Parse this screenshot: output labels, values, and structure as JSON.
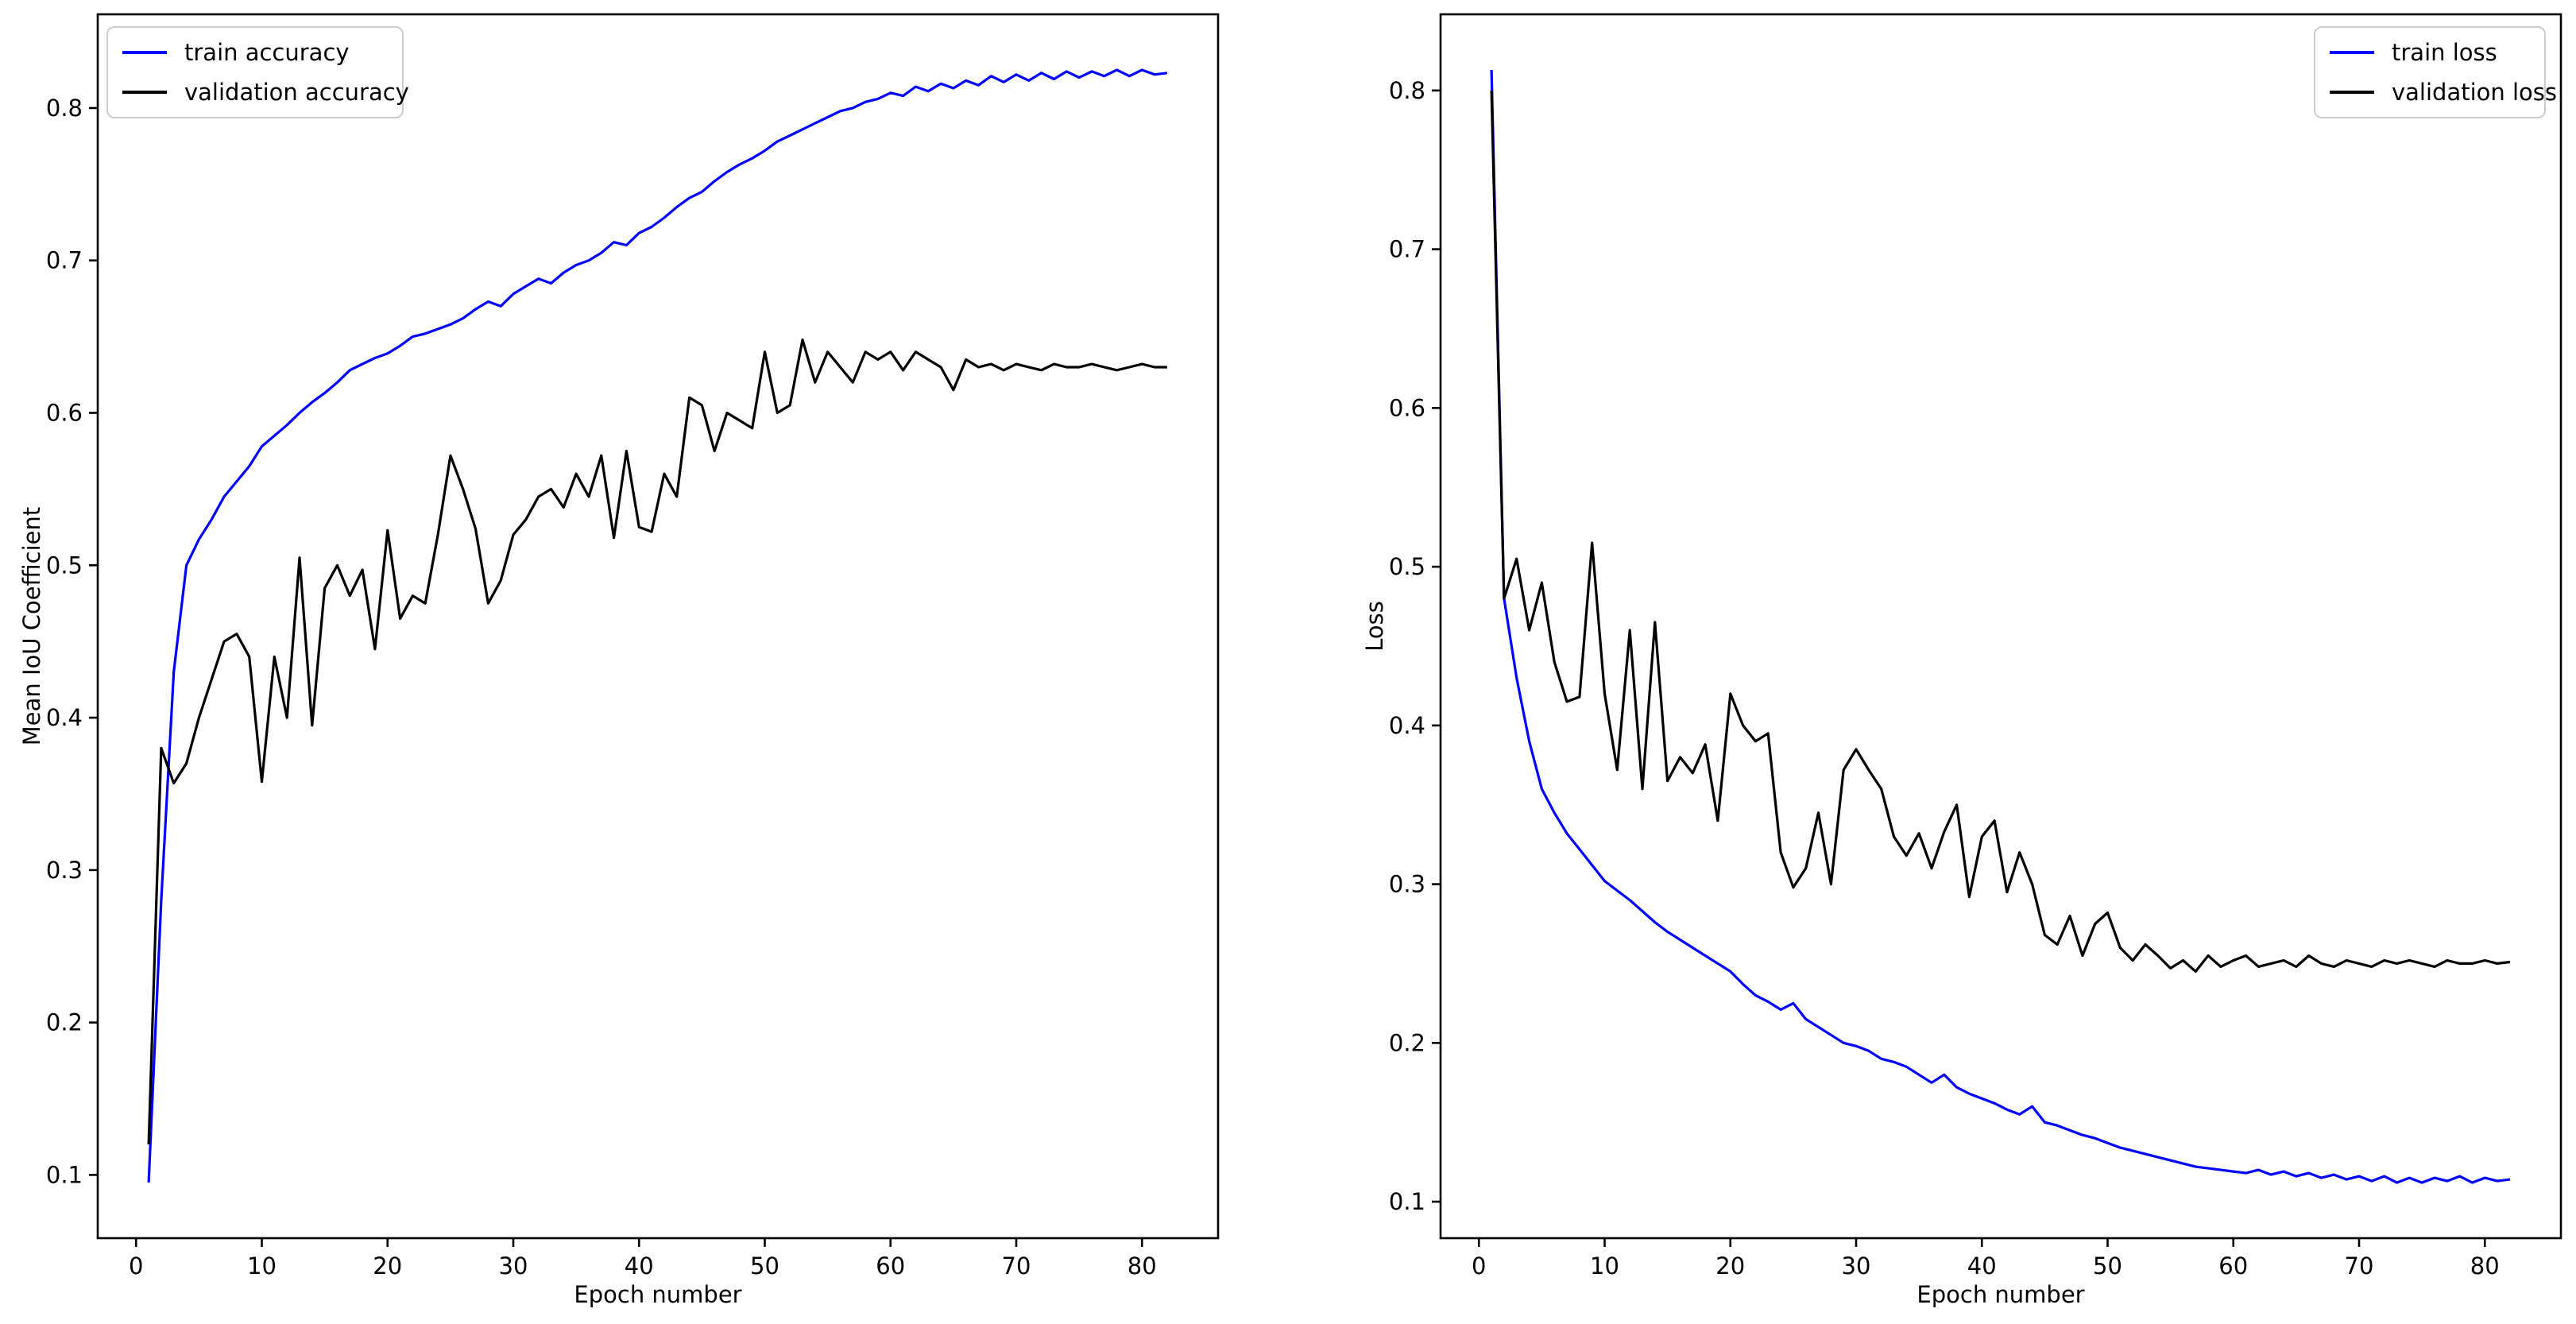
{
  "figure": {
    "background": "#ffffff",
    "line_colors": {
      "train": "#0000ff",
      "validation": "#000000"
    }
  },
  "chart_data": [
    {
      "id": "accuracy",
      "type": "line",
      "title": "",
      "xlabel": "Epoch number",
      "ylabel": "Mean IoU Coefficient",
      "x_ticks": [
        0,
        10,
        20,
        30,
        40,
        50,
        60,
        70,
        80
      ],
      "y_ticks": [
        0.1,
        0.2,
        0.3,
        0.4,
        0.5,
        0.6,
        0.7,
        0.8
      ],
      "xlim": [
        -3.05,
        86.05
      ],
      "ylim": [
        0.0585,
        0.8615
      ],
      "grid": false,
      "legend": {
        "position": "upper-left",
        "entries": [
          {
            "label": "train accuracy",
            "color": "#0000ff"
          },
          {
            "label": "validation accuracy",
            "color": "#000000"
          }
        ]
      },
      "x_start_epoch": 1,
      "series": [
        {
          "name": "train accuracy",
          "color": "#0000ff",
          "values": [
            0.095,
            0.28,
            0.43,
            0.5,
            0.517,
            0.53,
            0.545,
            0.555,
            0.565,
            0.578,
            0.585,
            0.592,
            0.6,
            0.607,
            0.613,
            0.62,
            0.628,
            0.632,
            0.636,
            0.639,
            0.644,
            0.65,
            0.652,
            0.655,
            0.658,
            0.662,
            0.668,
            0.673,
            0.67,
            0.678,
            0.683,
            0.688,
            0.685,
            0.692,
            0.697,
            0.7,
            0.705,
            0.712,
            0.71,
            0.718,
            0.722,
            0.728,
            0.735,
            0.741,
            0.745,
            0.752,
            0.758,
            0.763,
            0.767,
            0.772,
            0.778,
            0.782,
            0.786,
            0.79,
            0.794,
            0.798,
            0.8,
            0.804,
            0.806,
            0.81,
            0.808,
            0.814,
            0.811,
            0.816,
            0.813,
            0.818,
            0.815,
            0.821,
            0.817,
            0.822,
            0.818,
            0.823,
            0.819,
            0.824,
            0.82,
            0.824,
            0.821,
            0.825,
            0.821,
            0.825,
            0.822,
            0.823
          ]
        },
        {
          "name": "validation accuracy",
          "color": "#000000",
          "values": [
            0.12,
            0.38,
            0.357,
            0.37,
            0.4,
            0.425,
            0.45,
            0.455,
            0.44,
            0.358,
            0.44,
            0.4,
            0.505,
            0.395,
            0.485,
            0.5,
            0.48,
            0.497,
            0.445,
            0.523,
            0.465,
            0.48,
            0.475,
            0.52,
            0.572,
            0.55,
            0.524,
            0.475,
            0.49,
            0.52,
            0.53,
            0.545,
            0.55,
            0.538,
            0.56,
            0.545,
            0.572,
            0.518,
            0.575,
            0.525,
            0.522,
            0.56,
            0.545,
            0.61,
            0.605,
            0.575,
            0.6,
            0.595,
            0.59,
            0.64,
            0.6,
            0.605,
            0.648,
            0.62,
            0.64,
            0.63,
            0.62,
            0.64,
            0.635,
            0.64,
            0.628,
            0.64,
            0.635,
            0.63,
            0.615,
            0.635,
            0.63,
            0.632,
            0.628,
            0.632,
            0.63,
            0.628,
            0.632,
            0.63,
            0.63,
            0.632,
            0.63,
            0.628,
            0.63,
            0.632,
            0.63,
            0.63
          ]
        }
      ]
    },
    {
      "id": "loss",
      "type": "line",
      "title": "",
      "xlabel": "Epoch number",
      "ylabel": "Loss",
      "x_ticks": [
        0,
        10,
        20,
        30,
        40,
        50,
        60,
        70,
        80
      ],
      "y_ticks": [
        0.1,
        0.2,
        0.3,
        0.4,
        0.5,
        0.6,
        0.7,
        0.8
      ],
      "xlim": [
        -3.05,
        86.05
      ],
      "ylim": [
        0.077,
        0.848
      ],
      "grid": false,
      "legend": {
        "position": "upper-right",
        "entries": [
          {
            "label": "train loss",
            "color": "#0000ff"
          },
          {
            "label": "validation loss",
            "color": "#000000"
          }
        ]
      },
      "x_start_epoch": 1,
      "series": [
        {
          "name": "train loss",
          "color": "#0000ff",
          "values": [
            0.813,
            0.48,
            0.43,
            0.39,
            0.36,
            0.345,
            0.332,
            0.322,
            0.312,
            0.302,
            0.296,
            0.29,
            0.283,
            0.276,
            0.27,
            0.265,
            0.26,
            0.255,
            0.25,
            0.245,
            0.237,
            0.23,
            0.226,
            0.221,
            0.225,
            0.215,
            0.21,
            0.205,
            0.2,
            0.198,
            0.195,
            0.19,
            0.188,
            0.185,
            0.18,
            0.175,
            0.18,
            0.172,
            0.168,
            0.165,
            0.162,
            0.158,
            0.155,
            0.16,
            0.15,
            0.148,
            0.145,
            0.142,
            0.14,
            0.137,
            0.134,
            0.132,
            0.13,
            0.128,
            0.126,
            0.124,
            0.122,
            0.121,
            0.12,
            0.119,
            0.118,
            0.12,
            0.117,
            0.119,
            0.116,
            0.118,
            0.115,
            0.117,
            0.114,
            0.116,
            0.113,
            0.116,
            0.112,
            0.115,
            0.112,
            0.115,
            0.113,
            0.116,
            0.112,
            0.115,
            0.113,
            0.114
          ]
        },
        {
          "name": "validation loss",
          "color": "#000000",
          "values": [
            0.8,
            0.48,
            0.505,
            0.46,
            0.49,
            0.44,
            0.415,
            0.418,
            0.515,
            0.42,
            0.372,
            0.46,
            0.36,
            0.465,
            0.365,
            0.38,
            0.37,
            0.388,
            0.34,
            0.42,
            0.4,
            0.39,
            0.395,
            0.32,
            0.298,
            0.31,
            0.345,
            0.3,
            0.372,
            0.385,
            0.372,
            0.36,
            0.33,
            0.318,
            0.332,
            0.31,
            0.333,
            0.35,
            0.292,
            0.33,
            0.34,
            0.295,
            0.32,
            0.3,
            0.268,
            0.262,
            0.28,
            0.255,
            0.275,
            0.282,
            0.26,
            0.252,
            0.262,
            0.255,
            0.247,
            0.252,
            0.245,
            0.255,
            0.248,
            0.252,
            0.255,
            0.248,
            0.25,
            0.252,
            0.248,
            0.255,
            0.25,
            0.248,
            0.252,
            0.25,
            0.248,
            0.252,
            0.25,
            0.252,
            0.25,
            0.248,
            0.252,
            0.25,
            0.25,
            0.252,
            0.25,
            0.251
          ]
        }
      ]
    }
  ]
}
